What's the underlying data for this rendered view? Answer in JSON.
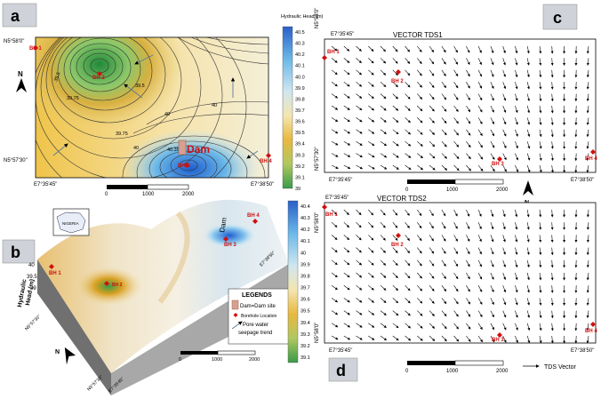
{
  "panels": {
    "a": {
      "label": "a"
    },
    "b": {
      "label": "b"
    },
    "c": {
      "label": "c"
    },
    "d": {
      "label": "d"
    }
  },
  "panel_a": {
    "coords": {
      "north_top": "N5°58'0\"",
      "north_bottom": "N5°57'30\"",
      "east_left": "E7°35'45\"",
      "east_right": "E7°38'50\""
    },
    "contours": [
      "39.5",
      "39.5",
      "39.75",
      "40",
      "40",
      "40.35",
      "39.75",
      "40"
    ],
    "boreholes": [
      "BH 1",
      "BH 2",
      "BH 3",
      "BH 4"
    ],
    "dam_label": "Dam",
    "scale": {
      "ticks": [
        "0",
        "1000",
        "2000"
      ]
    }
  },
  "legend_top": {
    "title": "Hydraulic Head (m)",
    "ticks": [
      "40.5",
      "40.3",
      "40.2",
      "40.1",
      "40.0",
      "39.9",
      "39.8",
      "39.7",
      "39.6",
      "39.5",
      "39.4",
      "39.3",
      "39.2",
      "39.1",
      "39"
    ]
  },
  "legend_bottom": {
    "ticks": [
      "40.4",
      "40.3",
      "40.2",
      "40.1",
      "40",
      "39.9",
      "39.8",
      "39.7",
      "39.6",
      "39.5",
      "39.4",
      "39.3",
      "39.2",
      "39.1"
    ]
  },
  "panel_b": {
    "inset_label": "NIGERIA",
    "axis_label_1": "Hydraulic",
    "axis_label_2": "Head (m)",
    "axis_ticks": [
      "40",
      "39.5",
      "39"
    ],
    "boreholes": [
      "BH 1",
      "BH 2",
      "BH 3",
      "BH 4"
    ],
    "dam_label": "Dam",
    "coords": {
      "lat_mid": "N5°57'30\"",
      "lon_left": "E7°35'45\"",
      "lon_right": "E7°38'50\"",
      "lat_top": "N5°58'0\""
    },
    "legends": {
      "title": "LEGENDS",
      "dam": "Dam=Dam site",
      "borehole": "Borehole Location",
      "seepage_1": "Pore water",
      "seepage_2": "seepage trend"
    },
    "scale": {
      "ticks": [
        "0",
        "1000",
        "2000"
      ]
    }
  },
  "panel_c": {
    "title": "VECTOR TDS1",
    "coords": {
      "east_left": "E7°35'45\"",
      "east_right": "E7°38'50\"",
      "east_top": "E7°35'45\"",
      "north_top": "N5°58'0\"",
      "north_mid": "N5°57'30\""
    },
    "boreholes": [
      "BH 1",
      "BH 2",
      "BH 3",
      "BH 4"
    ],
    "scale": {
      "ticks": [
        "0",
        "1000",
        "2000"
      ]
    }
  },
  "panel_d": {
    "title": "VECTOR TDS2",
    "coords": {
      "east_top": "E7°35'45\"",
      "east_left": "E7°35'45\"",
      "east_right": "E7°38'50\"",
      "north_top": "N5°58'0\"",
      "north_mid": "N5°58'0\""
    },
    "boreholes": [
      "BH 1",
      "BH 2",
      "BH 3",
      "BH 4"
    ],
    "scale": {
      "ticks": [
        "0",
        "1000",
        "2000"
      ]
    },
    "vector_legend": "TDS Vector"
  },
  "colors": {
    "borehole": "#d01010",
    "low_head": "#2a7ad0",
    "mid_head": "#d8a020",
    "high_head": "#6ab8e8"
  }
}
